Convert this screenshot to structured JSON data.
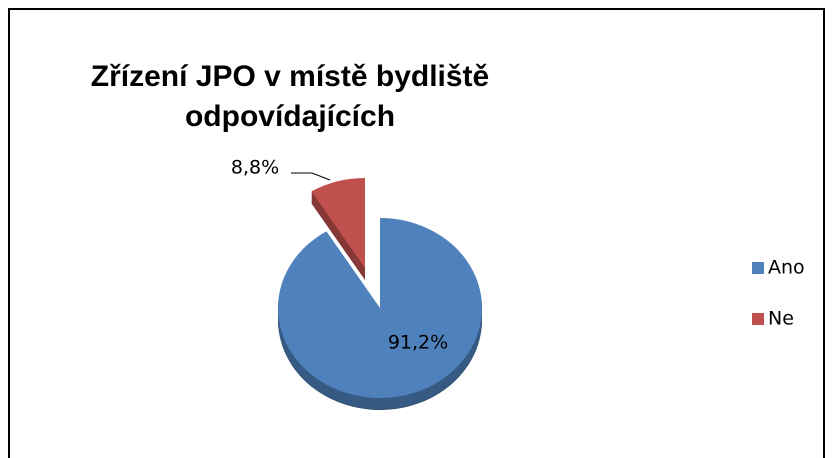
{
  "chart_data": {
    "type": "pie",
    "title": [
      "Zřízení JPO v místě bydliště",
      "odpovídajících"
    ],
    "categories": [
      "Ano",
      "Ne"
    ],
    "values": [
      91.2,
      8.8
    ],
    "value_labels": [
      "91,2%",
      "8,8%"
    ],
    "colors": [
      "#4f81bd",
      "#c0504d"
    ],
    "legend": "right"
  }
}
